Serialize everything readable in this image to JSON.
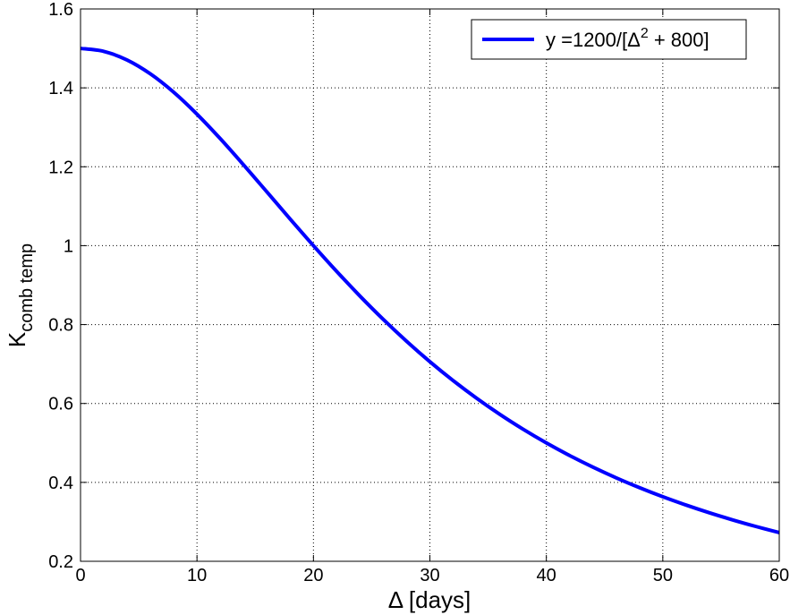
{
  "chart_data": {
    "type": "line",
    "title": "",
    "xlabel": "Δ [days]",
    "ylabel": "K",
    "ylabel_subscript": "comb temp",
    "xlim": [
      0,
      60
    ],
    "ylim": [
      0.2,
      1.6
    ],
    "xticks": [
      0,
      10,
      20,
      30,
      40,
      50,
      60
    ],
    "yticks": [
      0.2,
      0.4,
      0.6,
      0.8,
      1.0,
      1.2,
      1.4,
      1.6
    ],
    "xtick_labels": [
      "0",
      "10",
      "20",
      "30",
      "40",
      "50",
      "60"
    ],
    "ytick_labels": [
      "0.2",
      "0.4",
      "0.6",
      "0.8",
      "1",
      "1.2",
      "1.4",
      "1.6"
    ],
    "grid": true,
    "legend_position": "top-right",
    "legend": {
      "text_main": "y =1200/[Δ",
      "text_sup": "2",
      "text_tail": " + 800]"
    },
    "series": [
      {
        "color": "#0000ff",
        "x": [
          0,
          2,
          4,
          6,
          8,
          10,
          12,
          14,
          16,
          18,
          20,
          22,
          24,
          26,
          28,
          30,
          32,
          34,
          36,
          38,
          40,
          42,
          44,
          46,
          48,
          50,
          52,
          54,
          56,
          58,
          60
        ],
        "y": [
          1.5,
          1.4925,
          1.4706,
          1.4354,
          1.3889,
          1.3333,
          1.2712,
          1.2048,
          1.1364,
          1.0676,
          1.0,
          0.9346,
          0.8721,
          0.813,
          0.7576,
          0.7059,
          0.6579,
          0.6135,
          0.5725,
          0.5348,
          0.5,
          0.468,
          0.4386,
          0.4115,
          0.3866,
          0.3636,
          0.3425,
          0.3229,
          0.3049,
          0.2882,
          0.2727
        ]
      }
    ]
  }
}
